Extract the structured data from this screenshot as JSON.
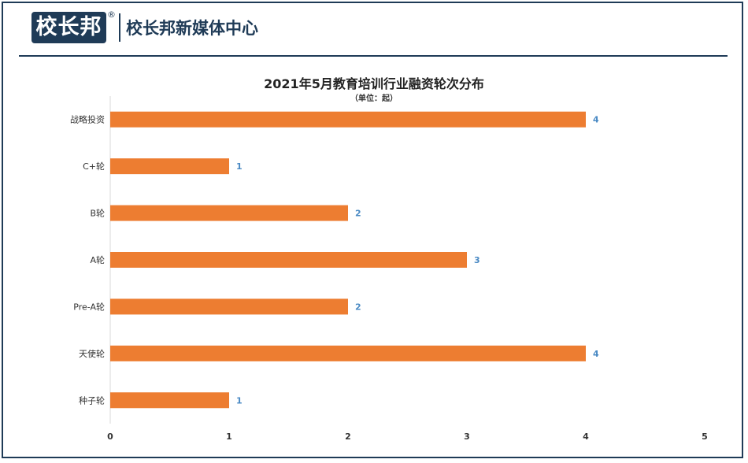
{
  "header": {
    "logo_text": "校长邦",
    "registered_mark": "®",
    "brand_name": "校长邦新媒体中心"
  },
  "chart_data": {
    "type": "bar",
    "orientation": "horizontal",
    "title": "2021年5月教育培训行业融资轮次分布",
    "subtitle": "（单位：起）",
    "categories": [
      "战略投资",
      "C+轮",
      "B轮",
      "A轮",
      "Pre-A轮",
      "天使轮",
      "种子轮"
    ],
    "values": [
      4,
      1,
      2,
      3,
      2,
      4,
      1
    ],
    "xlim": [
      0,
      5
    ],
    "xticks": [
      0,
      1,
      2,
      3,
      4,
      5
    ],
    "data_labels": true,
    "grid": false,
    "legend": "none",
    "colors": {
      "bar": "#ed7d31",
      "data_label": "#4a8ac4",
      "axis": "#d9d9d9"
    }
  }
}
